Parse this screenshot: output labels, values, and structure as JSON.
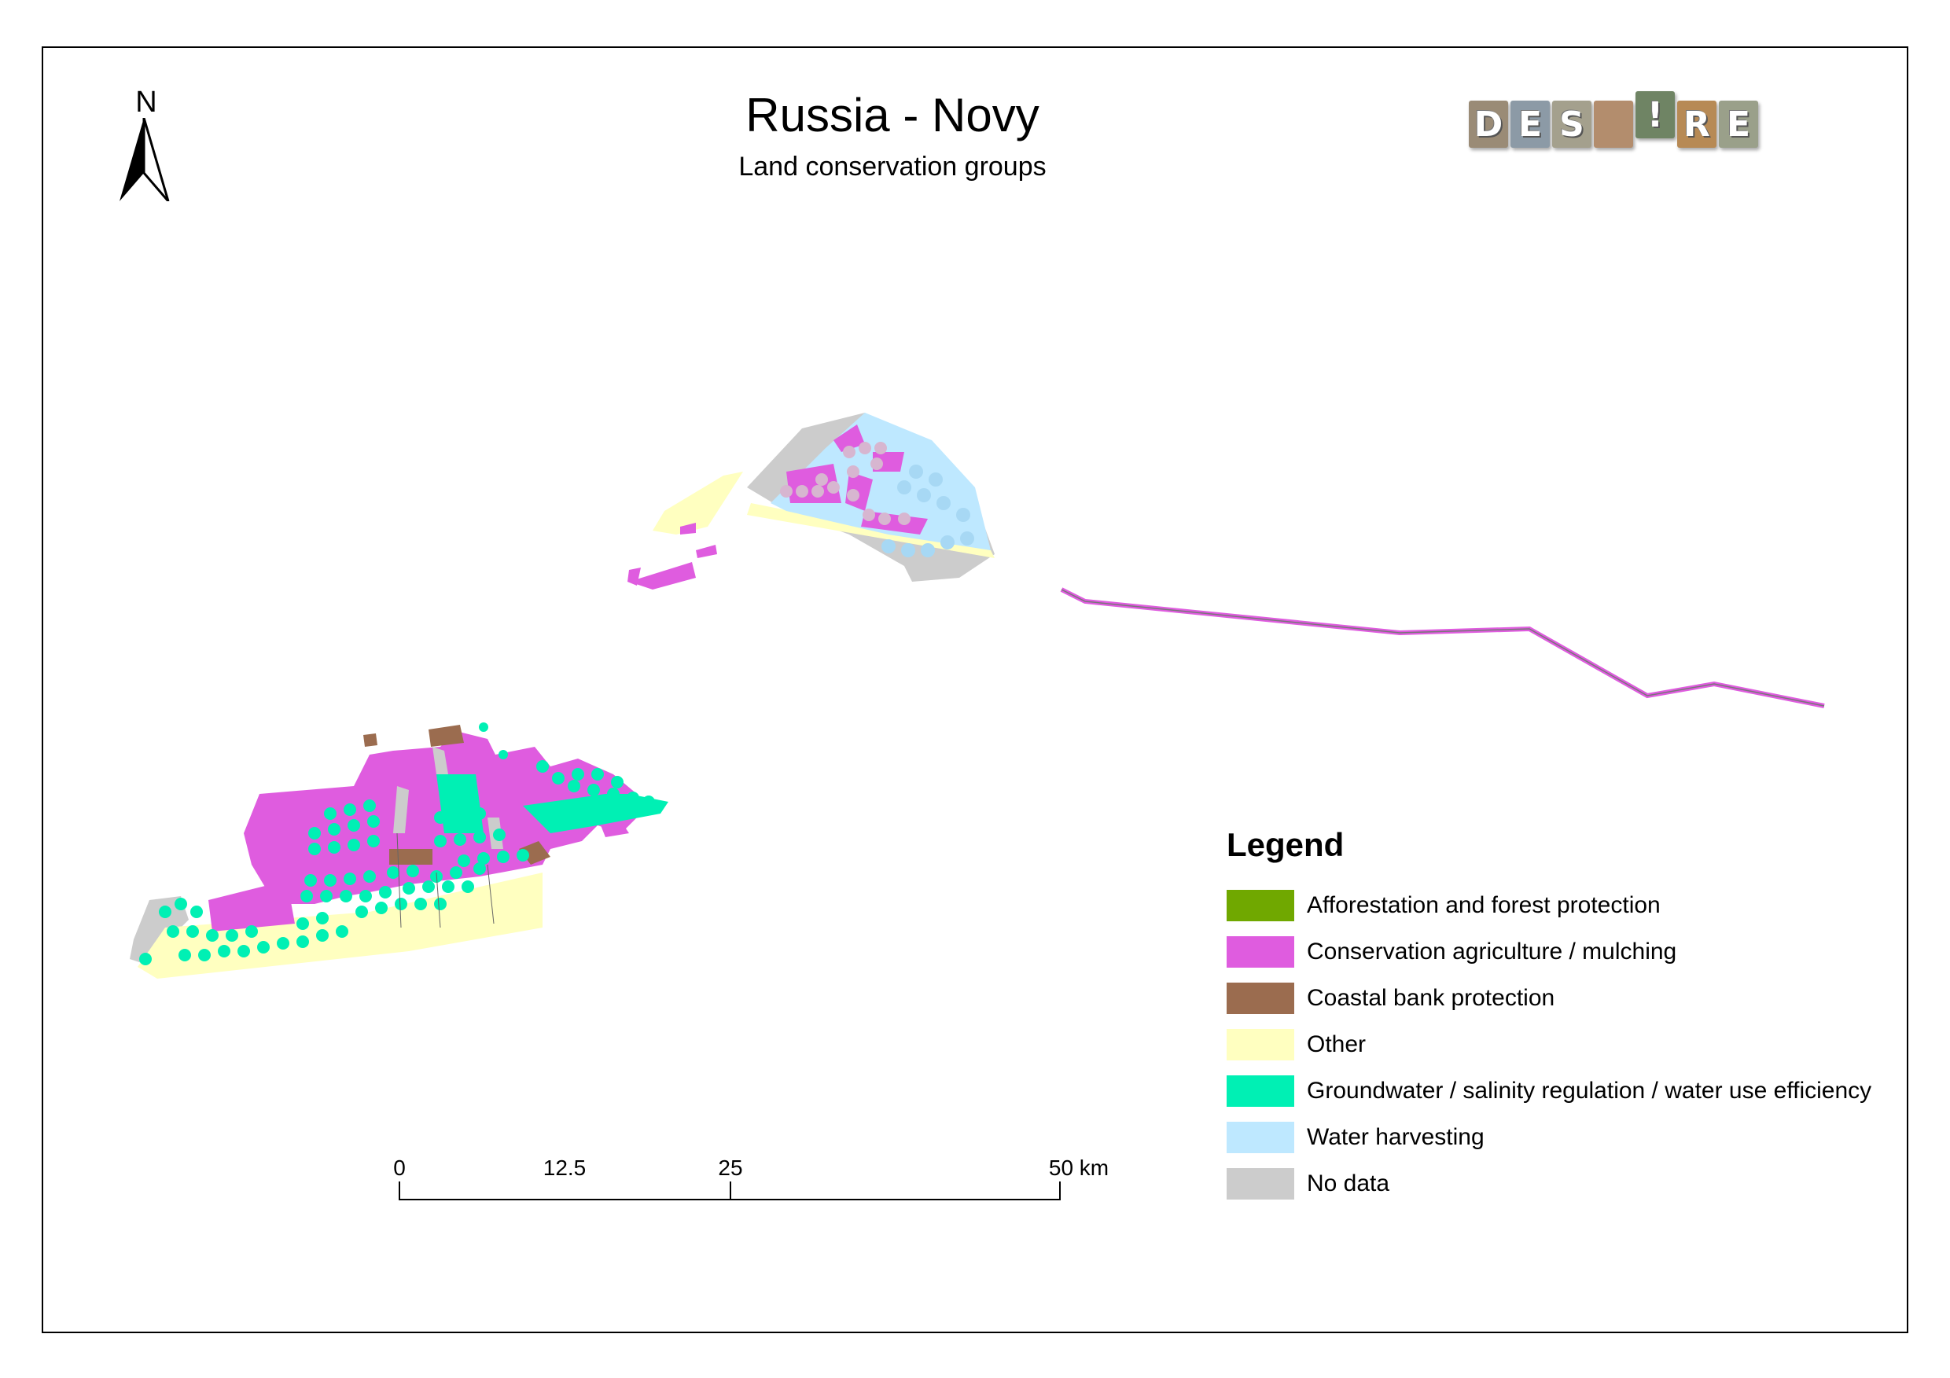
{
  "map": {
    "title": "Russia - Novy",
    "subtitle": "Land conservation groups",
    "north_label": "N",
    "logo_letters": [
      "D",
      "E",
      "S",
      "!",
      "R",
      "E"
    ],
    "colors": {
      "afforestation": "#70a800",
      "conservation": "#df5cdf",
      "coastal": "#9b6c4f",
      "other": "#ffffc0",
      "groundwater": "#00f0b4",
      "water_harvesting": "#bee8ff",
      "no_data": "#cccccc"
    }
  },
  "legend": {
    "title": "Legend",
    "items": [
      {
        "label": "Afforestation and forest protection",
        "color": "#70a800"
      },
      {
        "label": "Conservation agriculture / mulching",
        "color": "#df5cdf"
      },
      {
        "label": "Coastal  bank protection",
        "color": "#9b6c4f"
      },
      {
        "label": "Other",
        "color": "#ffffc0"
      },
      {
        "label": "Groundwater / salinity regulation / water use efficiency",
        "color": "#00f0b4"
      },
      {
        "label": "Water harvesting",
        "color": "#bee8ff"
      },
      {
        "label": "No data",
        "color": "#cccccc"
      }
    ]
  },
  "scale": {
    "labels": [
      "0",
      "12.5",
      "25",
      "50 km"
    ]
  }
}
